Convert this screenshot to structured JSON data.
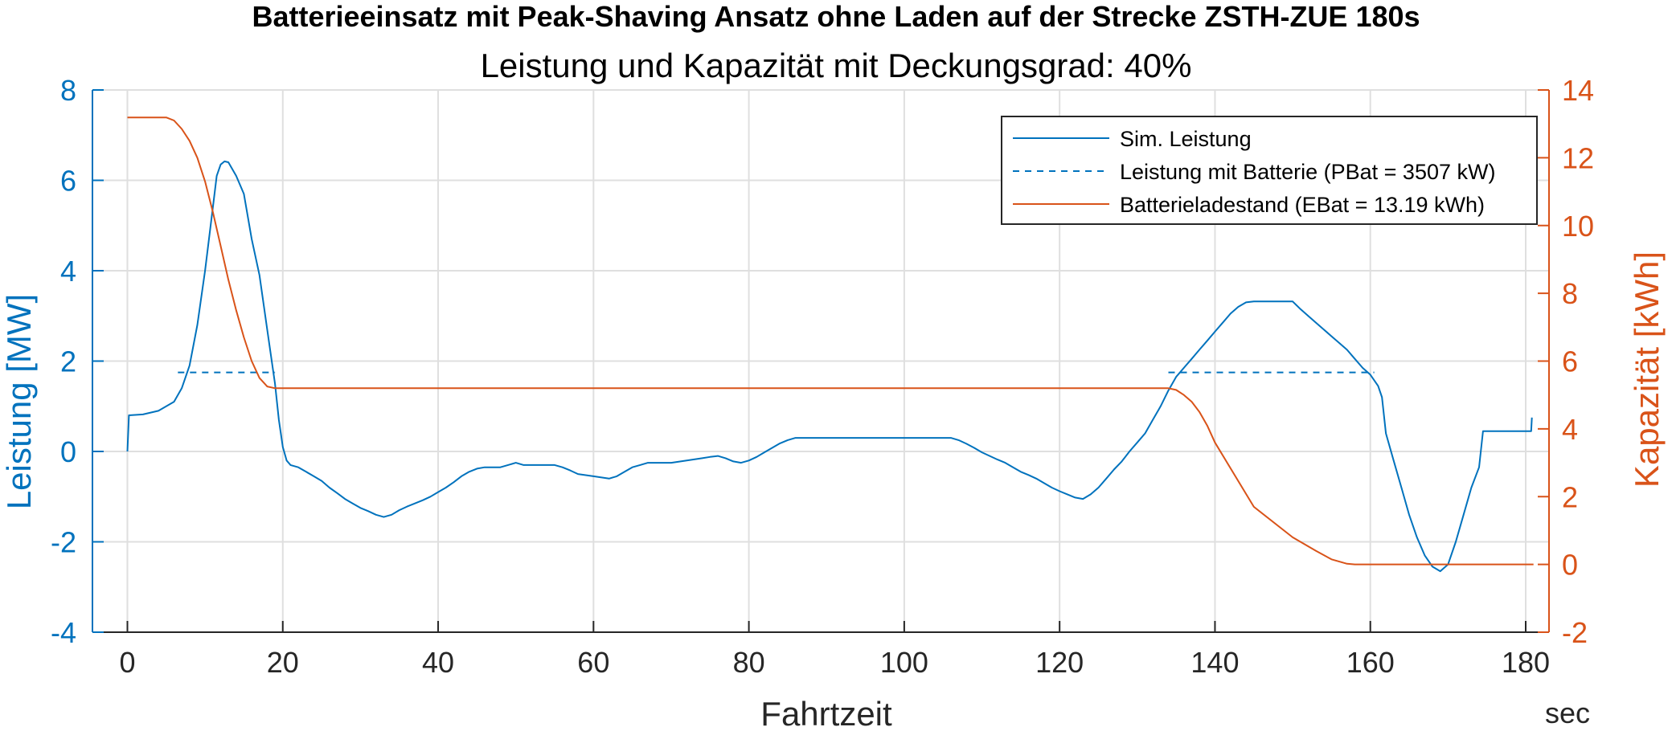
{
  "chart_data": {
    "type": "line",
    "title": "Batterieeinsatz mit Peak-Shaving Ansatz ohne Laden auf der Strecke ZSTH-ZUE 180s",
    "subtitle": "Leistung und Kapazität mit Deckungsgrad: 40%",
    "xlabel": "Fahrtzeit",
    "xunit": "sec",
    "ylabel_left": "Leistung [MW]",
    "ylabel_right": "Kapazität [kWh]",
    "xlim": [
      -4.5,
      183
    ],
    "ylim_left": [
      -4,
      8
    ],
    "ylim_right": [
      -2,
      14
    ],
    "xticks": [
      0,
      20,
      40,
      60,
      80,
      100,
      120,
      140,
      160,
      180
    ],
    "yticks_left": [
      -4,
      -2,
      0,
      2,
      4,
      6,
      8
    ],
    "yticks_right": [
      -2,
      0,
      2,
      4,
      6,
      8,
      10,
      12,
      14
    ],
    "grid": true,
    "legend_position": "top-right",
    "colors": {
      "blue": "#0072BD",
      "orange": "#D95319"
    },
    "series": [
      {
        "name": "Sim. Leistung",
        "axis": "left",
        "style": "solid",
        "color": "#0072BD",
        "points": [
          [
            0,
            0
          ],
          [
            0.2,
            0.8
          ],
          [
            2,
            0.82
          ],
          [
            4,
            0.9
          ],
          [
            6,
            1.1
          ],
          [
            7,
            1.4
          ],
          [
            8,
            1.9
          ],
          [
            9,
            2.8
          ],
          [
            10,
            4.0
          ],
          [
            11,
            5.4
          ],
          [
            11.5,
            6.1
          ],
          [
            12,
            6.35
          ],
          [
            12.5,
            6.42
          ],
          [
            13,
            6.4
          ],
          [
            14,
            6.1
          ],
          [
            15,
            5.7
          ],
          [
            16,
            4.7
          ],
          [
            17,
            3.9
          ],
          [
            18,
            2.7
          ],
          [
            19,
            1.5
          ],
          [
            19.5,
            0.7
          ],
          [
            20,
            0.1
          ],
          [
            20.5,
            -0.2
          ],
          [
            21,
            -0.3
          ],
          [
            22,
            -0.35
          ],
          [
            23,
            -0.45
          ],
          [
            24,
            -0.55
          ],
          [
            25,
            -0.65
          ],
          [
            26,
            -0.8
          ],
          [
            27,
            -0.92
          ],
          [
            28,
            -1.05
          ],
          [
            29,
            -1.15
          ],
          [
            30,
            -1.25
          ],
          [
            31,
            -1.32
          ],
          [
            32,
            -1.4
          ],
          [
            33,
            -1.45
          ],
          [
            34,
            -1.4
          ],
          [
            35,
            -1.3
          ],
          [
            36,
            -1.22
          ],
          [
            37,
            -1.15
          ],
          [
            38,
            -1.08
          ],
          [
            39,
            -1.0
          ],
          [
            40,
            -0.9
          ],
          [
            41,
            -0.8
          ],
          [
            42,
            -0.68
          ],
          [
            43,
            -0.55
          ],
          [
            44,
            -0.45
          ],
          [
            45,
            -0.38
          ],
          [
            46,
            -0.35
          ],
          [
            48,
            -0.35
          ],
          [
            49,
            -0.3
          ],
          [
            50,
            -0.25
          ],
          [
            51,
            -0.3
          ],
          [
            55,
            -0.3
          ],
          [
            56,
            -0.35
          ],
          [
            57,
            -0.42
          ],
          [
            58,
            -0.5
          ],
          [
            60,
            -0.55
          ],
          [
            62,
            -0.6
          ],
          [
            63,
            -0.55
          ],
          [
            64,
            -0.45
          ],
          [
            65,
            -0.35
          ],
          [
            66,
            -0.3
          ],
          [
            67,
            -0.25
          ],
          [
            70,
            -0.25
          ],
          [
            72,
            -0.2
          ],
          [
            74,
            -0.15
          ],
          [
            75,
            -0.12
          ],
          [
            76,
            -0.1
          ],
          [
            77,
            -0.15
          ],
          [
            78,
            -0.22
          ],
          [
            79,
            -0.25
          ],
          [
            80,
            -0.2
          ],
          [
            81,
            -0.12
          ],
          [
            82,
            -0.02
          ],
          [
            83,
            0.08
          ],
          [
            84,
            0.18
          ],
          [
            85,
            0.25
          ],
          [
            86,
            0.3
          ],
          [
            92,
            0.3
          ],
          [
            96,
            0.3
          ],
          [
            100,
            0.3
          ],
          [
            104,
            0.3
          ],
          [
            106,
            0.3
          ],
          [
            107,
            0.25
          ],
          [
            108,
            0.17
          ],
          [
            109,
            0.08
          ],
          [
            110,
            -0.02
          ],
          [
            111,
            -0.1
          ],
          [
            112,
            -0.18
          ],
          [
            113,
            -0.25
          ],
          [
            114,
            -0.35
          ],
          [
            115,
            -0.45
          ],
          [
            116,
            -0.52
          ],
          [
            117,
            -0.6
          ],
          [
            118,
            -0.7
          ],
          [
            119,
            -0.8
          ],
          [
            120,
            -0.88
          ],
          [
            121,
            -0.95
          ],
          [
            122,
            -1.02
          ],
          [
            123,
            -1.05
          ],
          [
            124,
            -0.95
          ],
          [
            125,
            -0.8
          ],
          [
            126,
            -0.6
          ],
          [
            127,
            -0.4
          ],
          [
            128,
            -0.22
          ],
          [
            129,
            0.0
          ],
          [
            130,
            0.2
          ],
          [
            131,
            0.4
          ],
          [
            132,
            0.7
          ],
          [
            133,
            1.0
          ],
          [
            134,
            1.35
          ],
          [
            135,
            1.65
          ],
          [
            136,
            1.85
          ],
          [
            137,
            2.05
          ],
          [
            138,
            2.25
          ],
          [
            139,
            2.45
          ],
          [
            140,
            2.65
          ],
          [
            141,
            2.85
          ],
          [
            142,
            3.05
          ],
          [
            143,
            3.2
          ],
          [
            144,
            3.3
          ],
          [
            145,
            3.32
          ],
          [
            148,
            3.32
          ],
          [
            150,
            3.32
          ],
          [
            151,
            3.15
          ],
          [
            152,
            3.0
          ],
          [
            153,
            2.85
          ],
          [
            154,
            2.7
          ],
          [
            155,
            2.55
          ],
          [
            156,
            2.4
          ],
          [
            157,
            2.25
          ],
          [
            158,
            2.05
          ],
          [
            159,
            1.85
          ],
          [
            160,
            1.7
          ],
          [
            161,
            1.45
          ],
          [
            161.5,
            1.2
          ],
          [
            162,
            0.4
          ],
          [
            163,
            -0.2
          ],
          [
            164,
            -0.8
          ],
          [
            165,
            -1.4
          ],
          [
            166,
            -1.9
          ],
          [
            167,
            -2.3
          ],
          [
            168,
            -2.55
          ],
          [
            169,
            -2.65
          ],
          [
            170,
            -2.5
          ],
          [
            171,
            -2.0
          ],
          [
            172,
            -1.4
          ],
          [
            173,
            -0.8
          ],
          [
            174,
            -0.35
          ],
          [
            174.5,
            0.45
          ],
          [
            176,
            0.45
          ],
          [
            178,
            0.45
          ],
          [
            180,
            0.45
          ],
          [
            180.7,
            0.45
          ],
          [
            180.8,
            0.75
          ]
        ]
      },
      {
        "name": "Leistung mit Batterie (PBat = 3507 kW)",
        "axis": "left",
        "style": "dashed",
        "color": "#0072BD",
        "segments": [
          [
            [
              6.5,
              1.75
            ],
            [
              19,
              1.75
            ]
          ],
          [
            [
              134,
              1.75
            ],
            [
              160.5,
              1.75
            ]
          ]
        ]
      },
      {
        "name": "Batterieladestand (EBat = 13.19 kWh)",
        "axis": "right",
        "style": "solid",
        "color": "#D95319",
        "points": [
          [
            0,
            13.19
          ],
          [
            5,
            13.19
          ],
          [
            6,
            13.1
          ],
          [
            7,
            12.85
          ],
          [
            8,
            12.5
          ],
          [
            9,
            12.0
          ],
          [
            10,
            11.3
          ],
          [
            11,
            10.4
          ],
          [
            12,
            9.4
          ],
          [
            13,
            8.4
          ],
          [
            14,
            7.5
          ],
          [
            15,
            6.7
          ],
          [
            16,
            6.0
          ],
          [
            17,
            5.5
          ],
          [
            18,
            5.25
          ],
          [
            19,
            5.2
          ],
          [
            20,
            5.2
          ],
          [
            60,
            5.2
          ],
          [
            100,
            5.2
          ],
          [
            133,
            5.2
          ],
          [
            134,
            5.2
          ],
          [
            135,
            5.15
          ],
          [
            136,
            5.0
          ],
          [
            137,
            4.8
          ],
          [
            138,
            4.5
          ],
          [
            139,
            4.1
          ],
          [
            140,
            3.6
          ],
          [
            145,
            1.7
          ],
          [
            150,
            0.8
          ],
          [
            153,
            0.4
          ],
          [
            155,
            0.15
          ],
          [
            157,
            0.02
          ],
          [
            158,
            0.0
          ],
          [
            170,
            0.0
          ],
          [
            181,
            0.0
          ]
        ]
      }
    ]
  }
}
